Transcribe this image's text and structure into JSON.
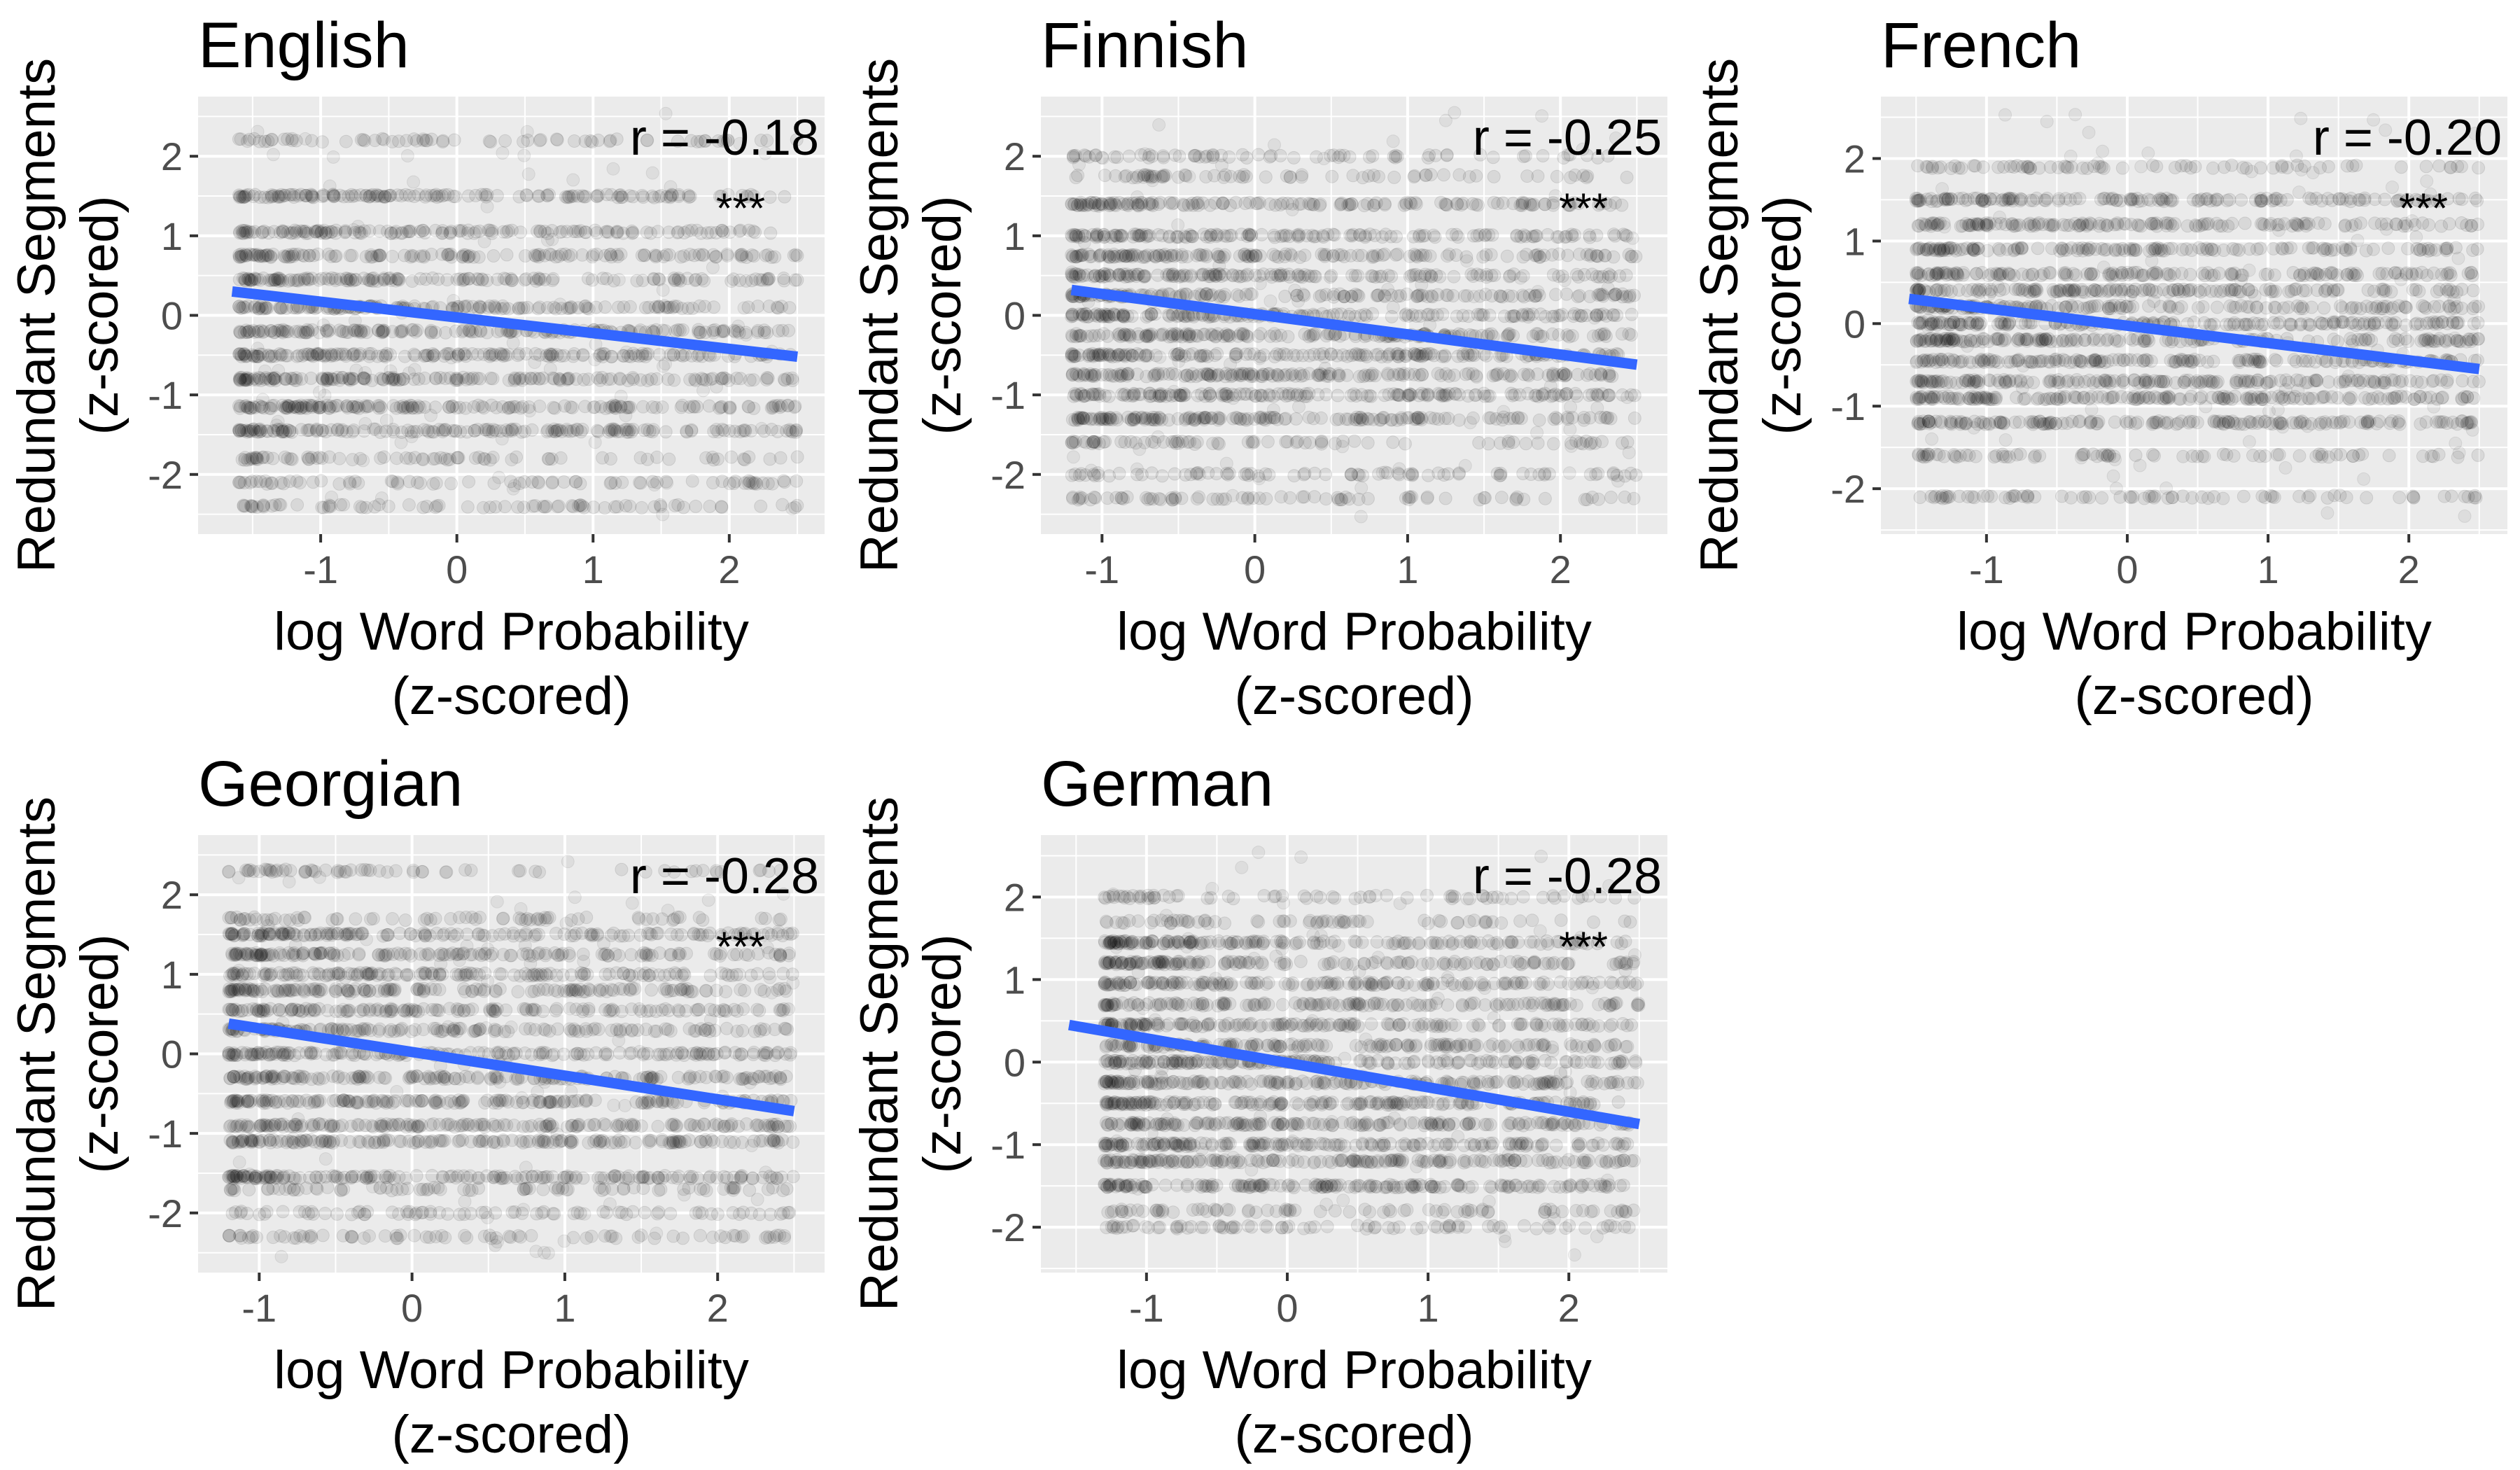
{
  "chart_data": [
    {
      "type": "scatter",
      "title": "English",
      "xlabel": "log Word Probability\n(z-scored)",
      "ylabel": "Redundant Segments\n(z-scored)",
      "xlim": [
        -1.9,
        2.7
      ],
      "ylim": [
        -2.75,
        2.75
      ],
      "xticks": [
        -1,
        0,
        1,
        2
      ],
      "yticks": [
        -2,
        -1,
        0,
        1,
        2
      ],
      "x_range": [
        -1.6,
        2.5
      ],
      "y_levels": [
        -2.4,
        -2.1,
        -1.8,
        -1.45,
        -1.15,
        -0.8,
        -0.5,
        -0.2,
        0.1,
        0.45,
        0.75,
        1.05,
        1.5,
        2.2
      ],
      "fit_line": {
        "x": [
          -1.65,
          2.5
        ],
        "y": [
          0.3,
          -0.52
        ]
      },
      "r_label": "r = -0.18",
      "significance": "***",
      "colors": {
        "points": "#000000",
        "fit": "#3366FF",
        "panel": "#EBEBEB",
        "grid": "#FFFFFF"
      }
    },
    {
      "type": "scatter",
      "title": "Finnish",
      "xlabel": "log Word Probability\n(z-scored)",
      "ylabel": "Redundant Segments\n(z-scored)",
      "xlim": [
        -1.4,
        2.7
      ],
      "ylim": [
        -2.75,
        2.75
      ],
      "xticks": [
        -1,
        0,
        1,
        2
      ],
      "yticks": [
        -2,
        -1,
        0,
        1,
        2
      ],
      "x_range": [
        -1.2,
        2.5
      ],
      "y_levels": [
        -2.3,
        -2.0,
        -1.6,
        -1.3,
        -1.0,
        -0.75,
        -0.5,
        -0.25,
        0.0,
        0.25,
        0.5,
        0.75,
        1.0,
        1.4,
        1.75,
        2.0
      ],
      "fit_line": {
        "x": [
          -1.2,
          2.5
        ],
        "y": [
          0.32,
          -0.62
        ]
      },
      "r_label": "r = -0.25",
      "significance": "***",
      "colors": {
        "points": "#000000",
        "fit": "#3366FF",
        "panel": "#EBEBEB",
        "grid": "#FFFFFF"
      }
    },
    {
      "type": "scatter",
      "title": "French",
      "xlabel": "log Word Probability\n(z-scored)",
      "ylabel": "Redundant Segments\n(z-scored)",
      "xlim": [
        -1.75,
        2.7
      ],
      "ylim": [
        -2.55,
        2.75
      ],
      "xticks": [
        -1,
        0,
        1,
        2
      ],
      "yticks": [
        -2,
        -1,
        0,
        1,
        2
      ],
      "x_range": [
        -1.5,
        2.5
      ],
      "y_levels": [
        -2.1,
        -1.6,
        -1.2,
        -0.9,
        -0.7,
        -0.45,
        -0.2,
        0.0,
        0.2,
        0.4,
        0.6,
        0.9,
        1.2,
        1.5,
        1.9
      ],
      "fit_line": {
        "x": [
          -1.55,
          2.5
        ],
        "y": [
          0.3,
          -0.55
        ]
      },
      "r_label": "r = -0.20",
      "significance": "***",
      "colors": {
        "points": "#000000",
        "fit": "#3366FF",
        "panel": "#EBEBEB",
        "grid": "#FFFFFF"
      }
    },
    {
      "type": "scatter",
      "title": "Georgian",
      "xlabel": "log Word Probability\n(z-scored)",
      "ylabel": "Redundant Segments\n(z-scored)",
      "xlim": [
        -1.4,
        2.7
      ],
      "ylim": [
        -2.75,
        2.75
      ],
      "xticks": [
        -1,
        0,
        1,
        2
      ],
      "yticks": [
        -2,
        -1,
        0,
        1,
        2
      ],
      "x_range": [
        -1.2,
        2.5
      ],
      "y_levels": [
        -2.3,
        -2.0,
        -1.7,
        -1.55,
        -1.1,
        -0.9,
        -0.6,
        -0.3,
        0.0,
        0.3,
        0.55,
        0.8,
        1.0,
        1.25,
        1.5,
        1.7,
        2.3
      ],
      "fit_line": {
        "x": [
          -1.2,
          2.5
        ],
        "y": [
          0.38,
          -0.72
        ]
      },
      "r_label": "r = -0.28",
      "significance": "***",
      "colors": {
        "points": "#000000",
        "fit": "#3366FF",
        "panel": "#EBEBEB",
        "grid": "#FFFFFF"
      }
    },
    {
      "type": "scatter",
      "title": "German",
      "xlabel": "log Word Probability\n(z-scored)",
      "ylabel": "Redundant Segments\n(z-scored)",
      "xlim": [
        -1.75,
        2.7
      ],
      "ylim": [
        -2.55,
        2.75
      ],
      "xticks": [
        -1,
        0,
        1,
        2
      ],
      "yticks": [
        -2,
        -1,
        0,
        1,
        2
      ],
      "x_range": [
        -1.3,
        2.5
      ],
      "y_levels": [
        -2.0,
        -1.8,
        -1.5,
        -1.2,
        -1.0,
        -0.75,
        -0.5,
        -0.25,
        0.0,
        0.2,
        0.45,
        0.7,
        0.95,
        1.2,
        1.45,
        1.7,
        2.0
      ],
      "fit_line": {
        "x": [
          -1.55,
          2.5
        ],
        "y": [
          0.45,
          -0.75
        ]
      },
      "r_label": "r = -0.28",
      "significance": "***",
      "colors": {
        "points": "#000000",
        "fit": "#3366FF",
        "panel": "#EBEBEB",
        "grid": "#FFFFFF"
      }
    }
  ]
}
